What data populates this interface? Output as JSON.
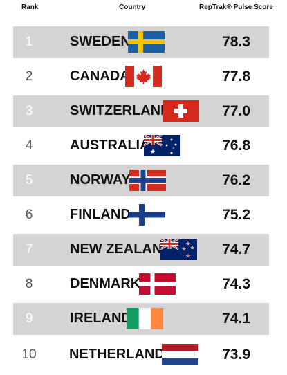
{
  "headers": {
    "rank": "Rank",
    "country": "Country",
    "score": "RepTrak® Pulse Score"
  },
  "chart_data": {
    "type": "table",
    "columns": [
      "Rank",
      "Country",
      "RepTrak® Pulse Score"
    ],
    "rows": [
      {
        "rank": "1",
        "country": "SWEDEN",
        "score": "78.3",
        "flag": "sweden-flag-icon"
      },
      {
        "rank": "2",
        "country": "CANADA",
        "score": "77.8",
        "flag": "canada-flag-icon"
      },
      {
        "rank": "3",
        "country": "SWITZERLAND",
        "score": "77.0",
        "flag": "switzerland-flag-icon"
      },
      {
        "rank": "4",
        "country": "AUSTRALIA",
        "score": "76.8",
        "flag": "australia-flag-icon"
      },
      {
        "rank": "5",
        "country": "NORWAY",
        "score": "76.2",
        "flag": "norway-flag-icon"
      },
      {
        "rank": "6",
        "country": "FINLAND",
        "score": "75.2",
        "flag": "finland-flag-icon"
      },
      {
        "rank": "7",
        "country": "NEW ZEALAND",
        "score": "74.7",
        "flag": "new-zealand-flag-icon"
      },
      {
        "rank": "8",
        "country": "DENMARK",
        "score": "74.3",
        "flag": "denmark-flag-icon"
      },
      {
        "rank": "9",
        "country": "IRELAND",
        "score": "74.1",
        "flag": "ireland-flag-icon"
      },
      {
        "rank": "10",
        "country": "NETHERLANDS",
        "score": "73.9",
        "flag": "netherlands-flag-icon"
      }
    ],
    "row_shading": [
      "shaded",
      "plain",
      "shaded",
      "plain",
      "shaded",
      "plain",
      "shaded",
      "plain",
      "shaded",
      "plain"
    ]
  },
  "colors": {
    "row_shade": "#d4d4d4",
    "sweden_blue": "#1a5fa8",
    "sweden_yellow": "#f5c400",
    "red": "#d52b1e",
    "white": "#ffffff",
    "nordic_blue": "#1f3f8f",
    "finland_blue": "#1b3f86",
    "ireland_green": "#169b62",
    "ireland_orange": "#ff883e",
    "dutch_red": "#ae1c28",
    "dutch_blue": "#21468b",
    "union_blue": "#012169"
  }
}
